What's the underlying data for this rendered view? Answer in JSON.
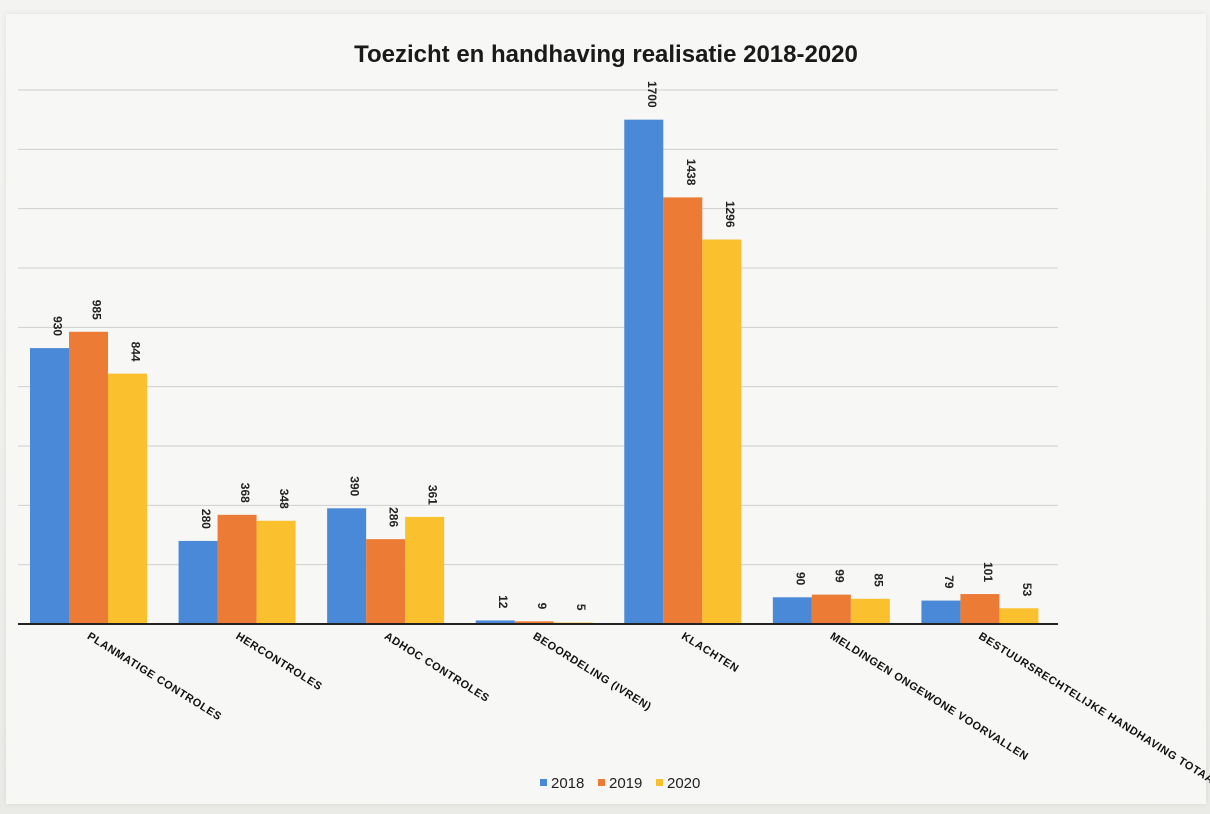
{
  "chart_data": {
    "type": "bar",
    "title": "Toezicht en handhaving realisatie 2018-2020",
    "categories": [
      "Planmatige controles",
      "Hercontroles",
      "Adhoc controles",
      "Beoordeling (IVREN)",
      "Klachten",
      "Meldingen ongewone voorvallen",
      "Bestuursrechtelijke handhaving totaal"
    ],
    "series": [
      {
        "name": "2018",
        "color": "#4a88d8",
        "values": [
          930,
          280,
          390,
          12,
          1700,
          90,
          79
        ]
      },
      {
        "name": "2019",
        "color": "#ec7b35",
        "values": [
          985,
          368,
          286,
          9,
          1438,
          99,
          101
        ]
      },
      {
        "name": "2020",
        "color": "#fbc02d",
        "values": [
          844,
          348,
          361,
          5,
          1296,
          85,
          53
        ]
      }
    ],
    "ylim": [
      0,
      1800
    ],
    "grid": true,
    "legend_position": "bottom-center",
    "xlabel": "",
    "ylabel": ""
  }
}
